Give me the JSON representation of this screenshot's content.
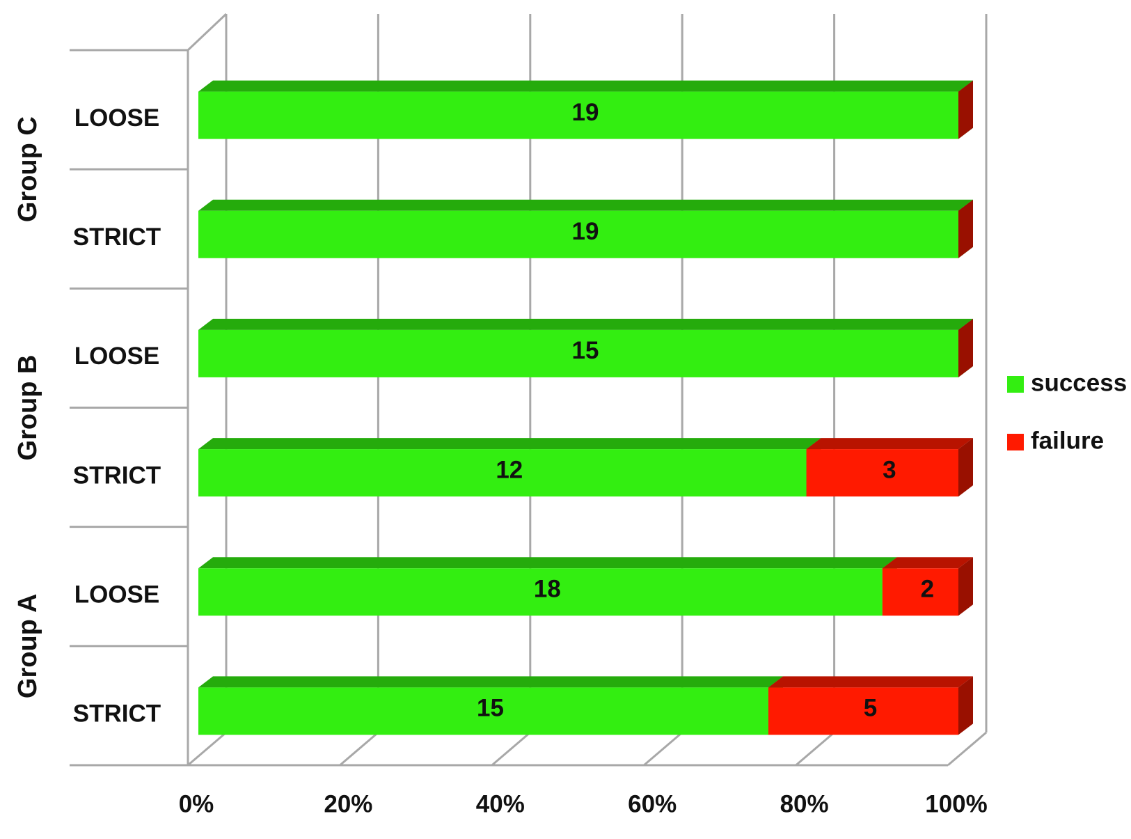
{
  "chart_data": {
    "type": "bar",
    "stacked": "percent",
    "groups": [
      "Group C",
      "Group B",
      "Group A"
    ],
    "categories": [
      "LOOSE",
      "STRICT",
      "LOOSE",
      "STRICT",
      "LOOSE",
      "STRICT"
    ],
    "series": [
      {
        "name": "success",
        "color": "#33ee11",
        "values": [
          19,
          19,
          15,
          12,
          18,
          15
        ]
      },
      {
        "name": "failure",
        "color": "#ff1a00",
        "values": [
          0,
          0,
          0,
          3,
          2,
          5
        ]
      }
    ],
    "xlim": [
      0,
      100
    ],
    "xticks": [
      {
        "value": 0,
        "label": "0%"
      },
      {
        "value": 20,
        "label": "20%"
      },
      {
        "value": 40,
        "label": "40%"
      },
      {
        "value": 60,
        "label": "60%"
      },
      {
        "value": 80,
        "label": "80%"
      },
      {
        "value": 100,
        "label": "100%"
      }
    ],
    "grid": true,
    "legend": "right"
  }
}
